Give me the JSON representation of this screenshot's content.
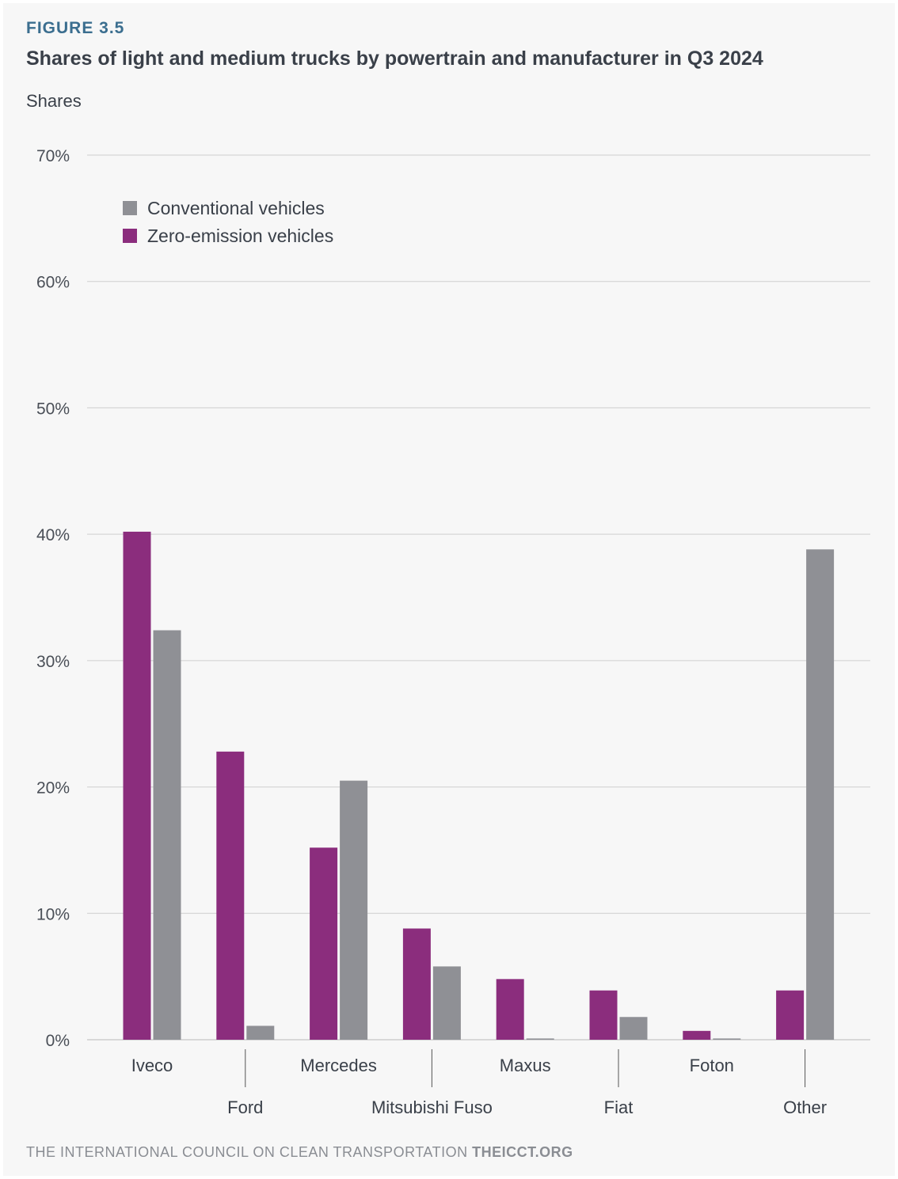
{
  "figure_label": "FIGURE 3.5",
  "footer": {
    "org": "THE INTERNATIONAL COUNCIL ON CLEAN TRANSPORTATION",
    "site": "THEICCT.ORG"
  },
  "colors": {
    "zero_emission": "#8b2d7d",
    "conventional": "#8f9095",
    "grid": "#cfcfcf",
    "accent_label": "#3b6e8f"
  },
  "chart_data": {
    "type": "bar",
    "title": "Shares of light and medium trucks by powertrain and manufacturer in Q3 2024",
    "ylabel": "Shares",
    "xlabel": "",
    "ylim": [
      0,
      70
    ],
    "yticks": [
      0,
      10,
      20,
      30,
      40,
      50,
      60,
      70
    ],
    "ytick_labels": [
      "0%",
      "10%",
      "20%",
      "30%",
      "40%",
      "50%",
      "60%",
      "70%"
    ],
    "grid": true,
    "legend_position": "top-left",
    "legend": [
      "Conventional vehicles",
      "Zero-emission vehicles"
    ],
    "categories": [
      "Iveco",
      "Ford",
      "Mercedes",
      "Mitsubishi Fuso",
      "Maxus",
      "Fiat",
      "Foton",
      "Other"
    ],
    "series": [
      {
        "name": "Zero-emission vehicles",
        "color": "#8b2d7d",
        "values": [
          40.2,
          22.8,
          15.2,
          8.8,
          4.8,
          3.9,
          0.7,
          3.9
        ]
      },
      {
        "name": "Conventional vehicles",
        "color": "#8f9095",
        "values": [
          32.4,
          1.1,
          20.5,
          5.8,
          0.1,
          1.8,
          0.1,
          38.8
        ]
      }
    ]
  }
}
